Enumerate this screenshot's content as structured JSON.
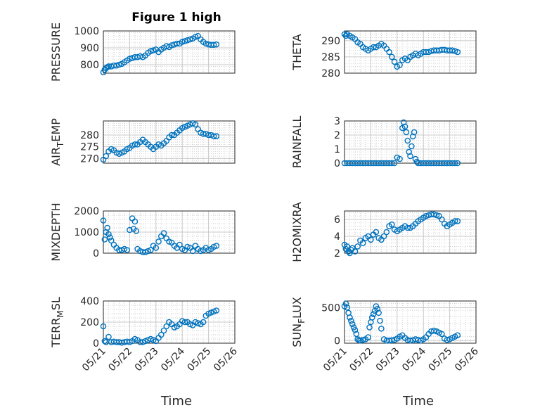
{
  "figure": {
    "title": "Figure 1 high",
    "xlabel": "Time"
  },
  "colors": {
    "marker": "#0072BD",
    "axes": "#262626",
    "grid": "#c8c8c8"
  },
  "chart_data": [
    {
      "type": "scatter",
      "ylabel": "PRESSURE",
      "title": "Figure 1 high",
      "xlabel": "",
      "xlim": [
        "05/21",
        "05/26"
      ],
      "ylim": [
        750,
        1000
      ],
      "yticks": [
        800,
        900,
        1000
      ],
      "xticks": [
        "05/21",
        "05/22",
        "05/23",
        "05/24",
        "05/25",
        "05/26"
      ],
      "grid": "on",
      "x": [
        0.0,
        0.05,
        0.1,
        0.15,
        0.2,
        0.3,
        0.4,
        0.5,
        0.6,
        0.7,
        0.8,
        0.9,
        1.0,
        1.1,
        1.2,
        1.3,
        1.4,
        1.5,
        1.6,
        1.7,
        1.8,
        1.9,
        2.0,
        2.1,
        2.2,
        2.3,
        2.4,
        2.5,
        2.6,
        2.7,
        2.8,
        2.9,
        3.0,
        3.1,
        3.2,
        3.3,
        3.4,
        3.5,
        3.6,
        3.7,
        3.8,
        3.9,
        4.0,
        4.1,
        4.2,
        4.3
      ],
      "y": [
        755,
        770,
        780,
        785,
        790,
        790,
        795,
        795,
        800,
        805,
        815,
        825,
        835,
        840,
        845,
        845,
        850,
        845,
        855,
        870,
        880,
        885,
        890,
        875,
        890,
        900,
        910,
        905,
        915,
        920,
        925,
        925,
        935,
        940,
        945,
        950,
        955,
        965,
        970,
        950,
        935,
        925,
        920,
        918,
        918,
        920
      ]
    },
    {
      "type": "scatter",
      "ylabel": "THETA",
      "title": "",
      "xlabel": "",
      "xlim": [
        "05/21",
        "05/26"
      ],
      "ylim": [
        280,
        293
      ],
      "yticks": [
        280,
        285,
        290
      ],
      "xticks": [
        "05/21",
        "05/22",
        "05/23",
        "05/24",
        "05/25",
        "05/26"
      ],
      "grid": "on",
      "x": [
        0.0,
        0.05,
        0.1,
        0.2,
        0.3,
        0.4,
        0.5,
        0.6,
        0.7,
        0.8,
        0.9,
        1.0,
        1.1,
        1.2,
        1.3,
        1.4,
        1.5,
        1.6,
        1.7,
        1.8,
        1.9,
        2.0,
        2.1,
        2.2,
        2.3,
        2.4,
        2.5,
        2.6,
        2.7,
        2.8,
        2.9,
        3.0,
        3.1,
        3.2,
        3.3,
        3.4,
        3.5,
        3.6,
        3.7,
        3.8,
        3.9,
        4.0,
        4.1,
        4.2,
        4.3
      ],
      "y": [
        292,
        291.5,
        292,
        291.5,
        291,
        290.5,
        289.5,
        289,
        288,
        287.5,
        287,
        287.5,
        288,
        288,
        288.5,
        289,
        288.5,
        287.5,
        286.5,
        285,
        283.5,
        282,
        282.5,
        284,
        284.5,
        284,
        285,
        285.5,
        286,
        285.5,
        286,
        286.5,
        286.5,
        286.5,
        286.8,
        287,
        287,
        287,
        287.2,
        287.2,
        287,
        287,
        287,
        286.8,
        286.5
      ]
    },
    {
      "type": "scatter",
      "ylabel": "AIR_TEMP",
      "title": "",
      "xlabel": "",
      "xlim": [
        "05/21",
        "05/26"
      ],
      "ylim": [
        268,
        286
      ],
      "yticks": [
        270,
        275,
        280
      ],
      "xticks": [
        "05/21",
        "05/22",
        "05/23",
        "05/24",
        "05/25",
        "05/26"
      ],
      "grid": "on",
      "x": [
        0.0,
        0.1,
        0.2,
        0.3,
        0.4,
        0.5,
        0.6,
        0.7,
        0.8,
        0.9,
        1.0,
        1.1,
        1.2,
        1.3,
        1.4,
        1.5,
        1.6,
        1.7,
        1.8,
        1.9,
        2.0,
        2.1,
        2.2,
        2.3,
        2.4,
        2.5,
        2.6,
        2.7,
        2.8,
        2.9,
        3.0,
        3.1,
        3.2,
        3.3,
        3.4,
        3.5,
        3.6,
        3.7,
        3.8,
        3.9,
        4.0,
        4.1,
        4.2,
        4.3
      ],
      "y": [
        269.5,
        271,
        273,
        274,
        273.5,
        272.5,
        272,
        272.5,
        273,
        274,
        274.5,
        275.5,
        276,
        276,
        277,
        278,
        277,
        276,
        275,
        274,
        275,
        276,
        275.5,
        276.5,
        277.5,
        279,
        280,
        280,
        281,
        282,
        283,
        283.5,
        284,
        284.5,
        285,
        284.5,
        282.5,
        281,
        280.5,
        280.5,
        280,
        280,
        279.5,
        279.5
      ]
    },
    {
      "type": "scatter",
      "ylabel": "RAINFALL",
      "title": "",
      "xlabel": "",
      "xlim": [
        "05/21",
        "05/26"
      ],
      "ylim": [
        0,
        3
      ],
      "yticks": [
        0,
        1,
        2,
        3
      ],
      "xticks": [
        "05/21",
        "05/22",
        "05/23",
        "05/24",
        "05/25",
        "05/26"
      ],
      "grid": "on",
      "x": [
        0.0,
        0.1,
        0.2,
        0.3,
        0.4,
        0.5,
        0.6,
        0.7,
        0.8,
        0.9,
        1.0,
        1.1,
        1.2,
        1.3,
        1.4,
        1.5,
        1.6,
        1.7,
        1.8,
        1.9,
        2.0,
        2.1,
        2.2,
        2.25,
        2.3,
        2.35,
        2.4,
        2.45,
        2.5,
        2.55,
        2.6,
        2.65,
        2.7,
        2.75,
        2.8,
        2.9,
        3.0,
        3.1,
        3.2,
        3.3,
        3.4,
        3.5,
        3.6,
        3.7,
        3.8,
        3.9,
        4.0,
        4.1,
        4.2,
        4.3
      ],
      "y": [
        0,
        0,
        0,
        0,
        0,
        0,
        0,
        0,
        0,
        0,
        0,
        0,
        0,
        0,
        0,
        0,
        0,
        0,
        0,
        0,
        0.4,
        0.3,
        2.5,
        2.9,
        2.6,
        2.2,
        1.6,
        0.8,
        0.5,
        1.2,
        1.9,
        2.2,
        0.3,
        0.1,
        0,
        0,
        0,
        0,
        0,
        0,
        0,
        0,
        0,
        0,
        0,
        0,
        0,
        0,
        0,
        0
      ]
    },
    {
      "type": "scatter",
      "ylabel": "MIXDEPTH",
      "title": "",
      "xlabel": "",
      "xlim": [
        "05/21",
        "05/26"
      ],
      "ylim": [
        0,
        2000
      ],
      "yticks": [
        0,
        1000,
        2000
      ],
      "xticks": [
        "05/21",
        "05/22",
        "05/23",
        "05/24",
        "05/25",
        "05/26"
      ],
      "grid": "on",
      "x": [
        0.0,
        0.05,
        0.1,
        0.15,
        0.2,
        0.25,
        0.3,
        0.4,
        0.5,
        0.6,
        0.7,
        0.8,
        0.9,
        1.0,
        1.1,
        1.15,
        1.2,
        1.25,
        1.3,
        1.4,
        1.5,
        1.6,
        1.7,
        1.8,
        1.9,
        2.0,
        2.1,
        2.2,
        2.3,
        2.4,
        2.5,
        2.6,
        2.7,
        2.8,
        2.9,
        3.0,
        3.1,
        3.2,
        3.3,
        3.4,
        3.5,
        3.6,
        3.7,
        3.8,
        3.9,
        4.0,
        4.1,
        4.2,
        4.3
      ],
      "y": [
        1550,
        650,
        1000,
        1200,
        900,
        750,
        600,
        400,
        250,
        150,
        150,
        200,
        150,
        1100,
        1650,
        1150,
        1500,
        1050,
        200,
        100,
        50,
        50,
        100,
        150,
        350,
        250,
        550,
        800,
        950,
        700,
        550,
        500,
        350,
        250,
        400,
        200,
        150,
        300,
        250,
        100,
        350,
        200,
        100,
        150,
        250,
        150,
        200,
        300,
        350
      ]
    },
    {
      "type": "scatter",
      "ylabel": "H2OMIXRA",
      "title": "",
      "xlabel": "",
      "xlim": [
        "05/21",
        "05/26"
      ],
      "ylim": [
        2,
        7
      ],
      "yticks": [
        2,
        4,
        6
      ],
      "xticks": [
        "05/21",
        "05/22",
        "05/23",
        "05/24",
        "05/25",
        "05/26"
      ],
      "grid": "on",
      "x": [
        0.0,
        0.05,
        0.1,
        0.15,
        0.2,
        0.25,
        0.3,
        0.4,
        0.5,
        0.6,
        0.7,
        0.8,
        0.9,
        1.0,
        1.1,
        1.2,
        1.3,
        1.4,
        1.5,
        1.6,
        1.7,
        1.8,
        1.9,
        2.0,
        2.1,
        2.2,
        2.3,
        2.4,
        2.5,
        2.6,
        2.7,
        2.8,
        2.9,
        3.0,
        3.1,
        3.2,
        3.3,
        3.4,
        3.5,
        3.6,
        3.7,
        3.8,
        3.9,
        4.0,
        4.1,
        4.2,
        4.3
      ],
      "y": [
        3.0,
        2.5,
        2.8,
        2.2,
        2.0,
        2.4,
        2.6,
        2.2,
        2.8,
        3.5,
        3.2,
        3.8,
        4.0,
        3.6,
        4.2,
        4.5,
        3.8,
        3.6,
        4.0,
        4.5,
        5.2,
        5.4,
        4.8,
        4.6,
        4.8,
        5.0,
        5.2,
        5.0,
        5.0,
        5.2,
        5.5,
        5.8,
        6.0,
        6.2,
        6.4,
        6.5,
        6.6,
        6.6,
        6.5,
        6.4,
        6.0,
        5.5,
        5.2,
        5.4,
        5.6,
        5.8,
        5.8
      ]
    },
    {
      "type": "scatter",
      "ylabel": "TERR_MSL",
      "title": "",
      "xlabel": "",
      "xlim": [
        "05/21",
        "05/26"
      ],
      "ylim": [
        0,
        400
      ],
      "yticks": [
        0,
        200,
        400
      ],
      "xticks": [
        "05/21",
        "05/22",
        "05/23",
        "05/24",
        "05/25",
        "05/26"
      ],
      "grid": "on",
      "x": [
        0.0,
        0.05,
        0.1,
        0.2,
        0.3,
        0.4,
        0.5,
        0.6,
        0.7,
        0.8,
        0.9,
        1.0,
        1.1,
        1.2,
        1.3,
        1.4,
        1.5,
        1.6,
        1.7,
        1.8,
        1.9,
        2.0,
        2.1,
        2.2,
        2.3,
        2.4,
        2.5,
        2.6,
        2.7,
        2.8,
        2.9,
        3.0,
        3.1,
        3.2,
        3.3,
        3.4,
        3.5,
        3.6,
        3.7,
        3.8,
        3.9,
        4.0,
        4.1,
        4.2,
        4.3
      ],
      "y": [
        160,
        20,
        10,
        60,
        10,
        15,
        10,
        10,
        5,
        10,
        15,
        10,
        20,
        40,
        30,
        10,
        10,
        20,
        30,
        40,
        30,
        20,
        50,
        80,
        120,
        160,
        200,
        180,
        150,
        160,
        180,
        210,
        200,
        200,
        180,
        170,
        200,
        190,
        180,
        200,
        260,
        280,
        290,
        300,
        310
      ]
    },
    {
      "type": "scatter",
      "ylabel": "SUN_FLUX",
      "title": "",
      "xlabel": "",
      "xlim": [
        "05/21",
        "05/26"
      ],
      "ylim": [
        -40,
        600
      ],
      "yticks": [
        0,
        500
      ],
      "xticks": [
        "05/21",
        "05/22",
        "05/23",
        "05/24",
        "05/25",
        "05/26"
      ],
      "grid": "on",
      "x": [
        0.0,
        0.05,
        0.1,
        0.15,
        0.2,
        0.25,
        0.3,
        0.35,
        0.4,
        0.45,
        0.5,
        0.55,
        0.6,
        0.7,
        0.8,
        0.9,
        0.95,
        1.0,
        1.05,
        1.1,
        1.15,
        1.2,
        1.25,
        1.3,
        1.35,
        1.4,
        1.5,
        1.6,
        1.7,
        1.8,
        1.9,
        2.0,
        2.1,
        2.2,
        2.3,
        2.4,
        2.5,
        2.6,
        2.7,
        2.8,
        2.9,
        3.0,
        3.1,
        3.2,
        3.3,
        3.4,
        3.5,
        3.6,
        3.7,
        3.8,
        3.9,
        4.0,
        4.1,
        4.2,
        4.3
      ],
      "y": [
        520,
        560,
        500,
        420,
        350,
        300,
        250,
        200,
        160,
        100,
        20,
        5,
        0,
        10,
        20,
        50,
        200,
        280,
        350,
        400,
        450,
        520,
        480,
        420,
        300,
        180,
        20,
        0,
        0,
        5,
        10,
        30,
        60,
        80,
        40,
        10,
        0,
        5,
        20,
        10,
        0,
        20,
        50,
        100,
        140,
        150,
        140,
        120,
        100,
        30,
        10,
        20,
        40,
        60,
        80
      ]
    }
  ]
}
